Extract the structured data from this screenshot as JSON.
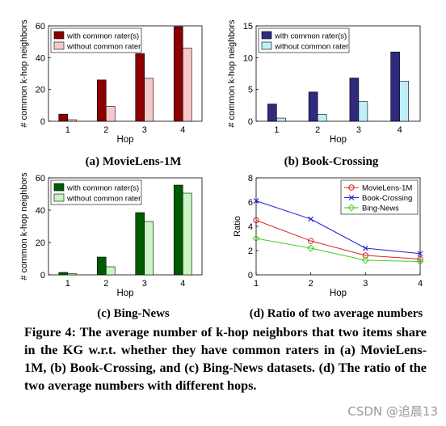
{
  "panels": [
    {
      "id": "a",
      "label": "(a) MovieLens-1M"
    },
    {
      "id": "b",
      "label": "(b) Book-Crossing"
    },
    {
      "id": "c",
      "label": "(c) Bing-News"
    },
    {
      "id": "d",
      "label": "(d) Ratio of two average numbers"
    }
  ],
  "caption": "Figure 4: The average number of k-hop neighbors that two items share in the KG w.r.t. whether they have common raters in (a) MovieLens-1M, (b) Book-Crossing, and (c) Bing-News datasets. (d) The ratio of the two average numbers with different hops.",
  "watermark": "CSDN @追晨13",
  "colors": {
    "ml_dark": "#8b0000",
    "ml_light": "#f8c8c8",
    "bx_dark": "#2e2a7e",
    "bx_light": "#bfeefa",
    "bn_dark": "#005a00",
    "bn_light": "#c9f5c2",
    "line_ml": "#d62728",
    "line_bx": "#1f1fd8",
    "line_bn": "#44cc22"
  },
  "chart_data": [
    {
      "type": "bar",
      "categories": [
        "1",
        "2",
        "3",
        "4"
      ],
      "series": [
        {
          "name": "with common rater(s)",
          "values": [
            4.5,
            26,
            42.5,
            59.5
          ]
        },
        {
          "name": "without common rater",
          "values": [
            1,
            9.5,
            27,
            46
          ]
        }
      ],
      "xlabel": "Hop",
      "ylabel": "# common k-hop neighbors",
      "ylim": [
        0,
        60
      ],
      "yticks": [
        "0",
        "20",
        "40",
        "60"
      ],
      "legend": "top-left"
    },
    {
      "type": "bar",
      "categories": [
        "1",
        "2",
        "3",
        "4"
      ],
      "series": [
        {
          "name": "with common rater(s)",
          "values": [
            2.7,
            4.6,
            6.8,
            10.9
          ]
        },
        {
          "name": "without common rater",
          "values": [
            0.5,
            1.1,
            3.1,
            6.3
          ]
        }
      ],
      "xlabel": "Hop",
      "ylabel": "# common k-hop neighbors",
      "ylim": [
        0,
        15
      ],
      "yticks": [
        "0",
        "5",
        "10",
        "15"
      ],
      "legend": "top-left"
    },
    {
      "type": "bar",
      "categories": [
        "1",
        "2",
        "3",
        "4"
      ],
      "series": [
        {
          "name": "with common rater(s)",
          "values": [
            1.5,
            11,
            38.5,
            55.5
          ]
        },
        {
          "name": "without common rater",
          "values": [
            0.7,
            5,
            33,
            50.5
          ]
        }
      ],
      "xlabel": "Hop",
      "ylabel": "# common k-hop neighbors",
      "ylim": [
        0,
        60
      ],
      "yticks": [
        "0",
        "20",
        "40",
        "60"
      ],
      "legend": "top-left"
    },
    {
      "type": "line",
      "x": [
        1,
        2,
        3,
        4
      ],
      "series": [
        {
          "name": "MovieLens-1M",
          "values": [
            4.5,
            2.8,
            1.6,
            1.3
          ],
          "marker": "circle"
        },
        {
          "name": "Book-Crossing",
          "values": [
            6.1,
            4.6,
            2.2,
            1.75
          ],
          "marker": "x"
        },
        {
          "name": "Bing-News",
          "values": [
            3.0,
            2.2,
            1.2,
            1.1
          ],
          "marker": "diamond"
        }
      ],
      "xlabel": "Hop",
      "ylabel": "Ratio",
      "xlim": [
        1,
        4
      ],
      "ylim": [
        0,
        8
      ],
      "xticks": [
        "1",
        "2",
        "3",
        "4"
      ],
      "yticks": [
        "0",
        "2",
        "4",
        "6",
        "8"
      ],
      "legend": "top-right"
    }
  ]
}
